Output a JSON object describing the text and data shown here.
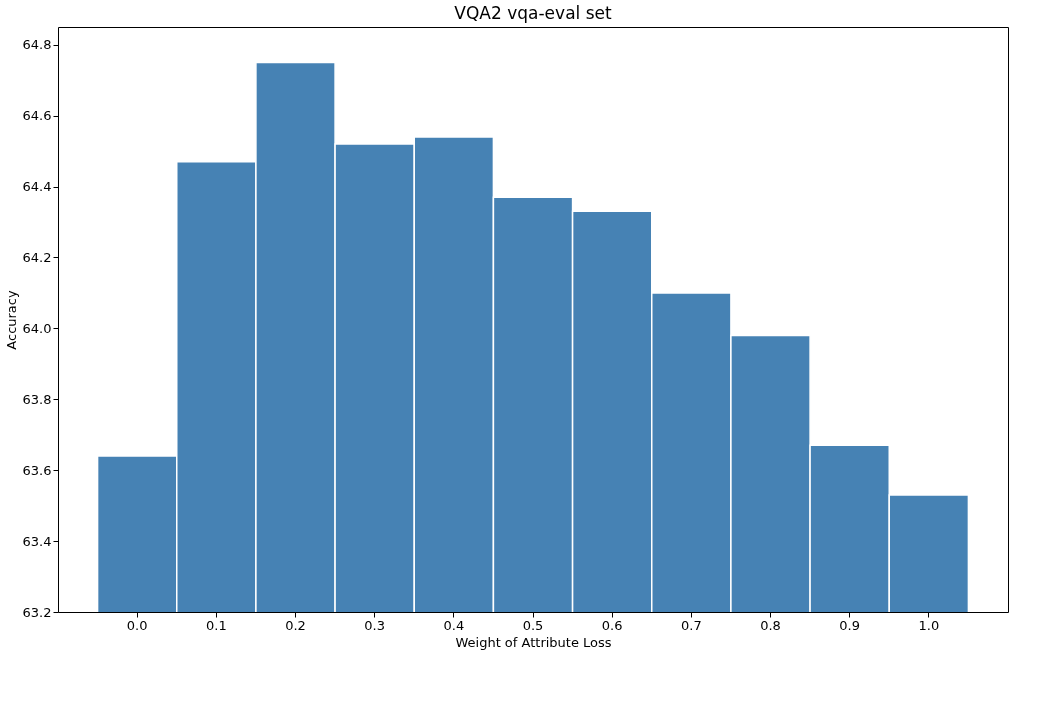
{
  "chart_data": {
    "type": "bar",
    "title": "VQA2 vqa-eval set",
    "xlabel": "Weight of Attribute Loss",
    "ylabel": "Accuracy",
    "categories": [
      "0.0",
      "0.1",
      "0.2",
      "0.3",
      "0.4",
      "0.5",
      "0.6",
      "0.7",
      "0.8",
      "0.9",
      "1.0"
    ],
    "values": [
      63.64,
      64.47,
      64.75,
      64.52,
      64.54,
      64.37,
      64.33,
      64.1,
      63.98,
      63.67,
      63.53
    ],
    "color": "#4682b4",
    "ylim": [
      63.2,
      64.85
    ],
    "yticks": [
      63.2,
      63.4,
      63.6,
      63.8,
      {
        "value": 64,
        "label": "64.0"
      },
      64.2,
      64.4,
      64.6,
      64.8
    ],
    "grid": false
  }
}
